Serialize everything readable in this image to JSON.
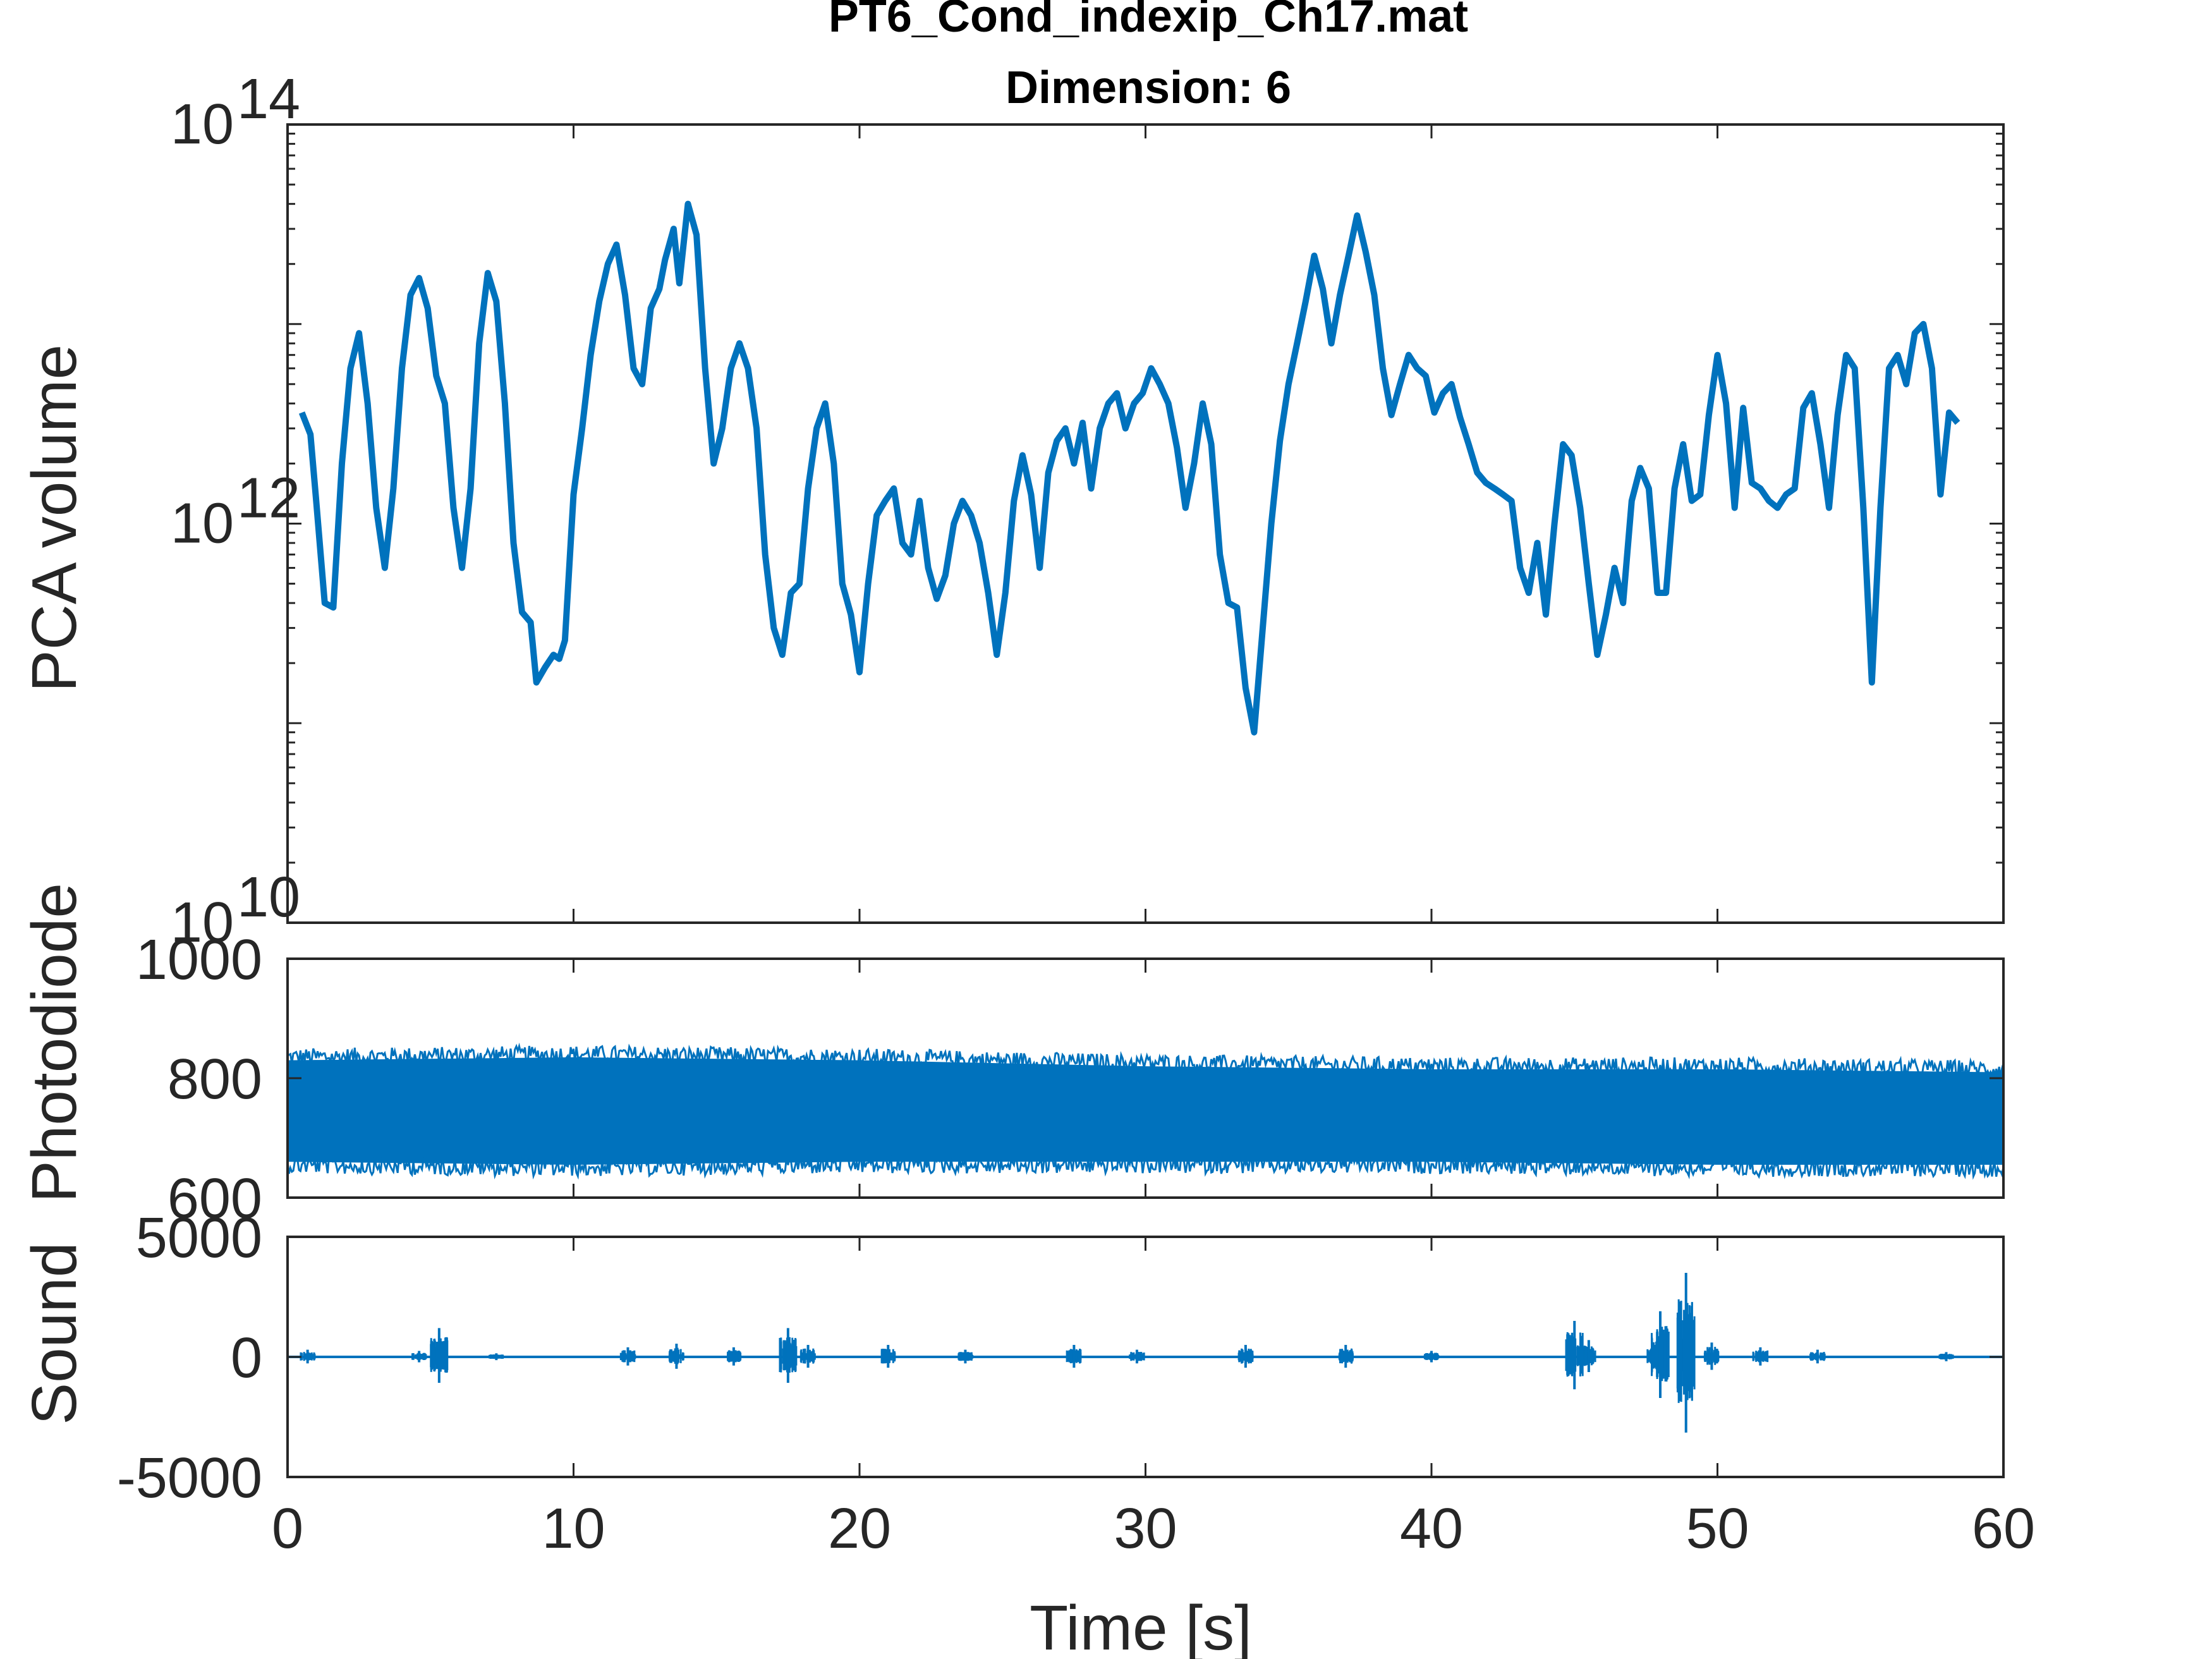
{
  "figure": {
    "title_line1": "PT6_Cond_indexip_Ch17.mat",
    "title_line2": "Dimension: 6"
  },
  "colors": {
    "line": "#0072BD",
    "axis": "#262626"
  },
  "chart_data": [
    {
      "id": "pca",
      "type": "line",
      "ylabel": "PCA volume",
      "yscale": "log",
      "xlim": [
        0,
        60
      ],
      "ylim": [
        10000000000.0,
        100000000000000.0
      ],
      "xticks": [
        0,
        10,
        20,
        30,
        40,
        50,
        60
      ],
      "yticks": [
        {
          "value": 10000000000.0,
          "base": "10",
          "exp": "10"
        },
        {
          "value": 1000000000000.0,
          "base": "10",
          "exp": "12"
        },
        {
          "value": 100000000000000.0,
          "base": "10",
          "exp": "14"
        }
      ],
      "series": [
        {
          "points": [
            [
              0.5,
              3600000000000.0
            ],
            [
              0.8,
              2800000000000.0
            ],
            [
              1.0,
              1300000000000.0
            ],
            [
              1.3,
              400000000000.0
            ],
            [
              1.6,
              380000000000.0
            ],
            [
              1.9,
              2000000000000.0
            ],
            [
              2.2,
              6000000000000.0
            ],
            [
              2.5,
              9000000000000.0
            ],
            [
              2.8,
              4000000000000.0
            ],
            [
              3.1,
              1200000000000.0
            ],
            [
              3.4,
              600000000000.0
            ],
            [
              3.7,
              1500000000000.0
            ],
            [
              4.0,
              6000000000000.0
            ],
            [
              4.3,
              14000000000000.0
            ],
            [
              4.6,
              17000000000000.0
            ],
            [
              4.9,
              12000000000000.0
            ],
            [
              5.2,
              5500000000000.0
            ],
            [
              5.5,
              4000000000000.0
            ],
            [
              5.8,
              1200000000000.0
            ],
            [
              6.1,
              600000000000.0
            ],
            [
              6.4,
              1500000000000.0
            ],
            [
              6.7,
              8000000000000.0
            ],
            [
              7.0,
              18000000000000.0
            ],
            [
              7.3,
              13000000000000.0
            ],
            [
              7.6,
              4000000000000.0
            ],
            [
              7.9,
              800000000000.0
            ],
            [
              8.2,
              360000000000.0
            ],
            [
              8.5,
              320000000000.0
            ],
            [
              8.7,
              160000000000.0
            ],
            [
              9.0,
              190000000000.0
            ],
            [
              9.3,
              220000000000.0
            ],
            [
              9.5,
              210000000000.0
            ],
            [
              9.7,
              260000000000.0
            ],
            [
              10.0,
              1400000000000.0
            ],
            [
              10.3,
              3000000000000.0
            ],
            [
              10.6,
              7000000000000.0
            ],
            [
              10.9,
              13000000000000.0
            ],
            [
              11.2,
              20000000000000.0
            ],
            [
              11.5,
              25000000000000.0
            ],
            [
              11.8,
              14000000000000.0
            ],
            [
              12.1,
              6000000000000.0
            ],
            [
              12.4,
              5000000000000.0
            ],
            [
              12.7,
              12000000000000.0
            ],
            [
              13.0,
              15000000000000.0
            ],
            [
              13.2,
              21000000000000.0
            ],
            [
              13.5,
              30000000000000.0
            ],
            [
              13.7,
              16000000000000.0
            ],
            [
              14.0,
              40000000000000.0
            ],
            [
              14.3,
              28000000000000.0
            ],
            [
              14.6,
              6000000000000.0
            ],
            [
              14.9,
              2000000000000.0
            ],
            [
              15.2,
              3000000000000.0
            ],
            [
              15.5,
              6000000000000.0
            ],
            [
              15.8,
              8000000000000.0
            ],
            [
              16.1,
              6000000000000.0
            ],
            [
              16.4,
              3000000000000.0
            ],
            [
              16.7,
              700000000000.0
            ],
            [
              17.0,
              300000000000.0
            ],
            [
              17.3,
              220000000000.0
            ],
            [
              17.6,
              450000000000.0
            ],
            [
              17.9,
              500000000000.0
            ],
            [
              18.2,
              1500000000000.0
            ],
            [
              18.5,
              3000000000000.0
            ],
            [
              18.8,
              4000000000000.0
            ],
            [
              19.1,
              2000000000000.0
            ],
            [
              19.4,
              500000000000.0
            ],
            [
              19.7,
              350000000000.0
            ],
            [
              20.0,
              180000000000.0
            ],
            [
              20.3,
              500000000000.0
            ],
            [
              20.6,
              1100000000000.0
            ],
            [
              20.9,
              1300000000000.0
            ],
            [
              21.2,
              1500000000000.0
            ],
            [
              21.5,
              800000000000.0
            ],
            [
              21.8,
              700000000000.0
            ],
            [
              22.1,
              1300000000000.0
            ],
            [
              22.4,
              600000000000.0
            ],
            [
              22.7,
              420000000000.0
            ],
            [
              23.0,
              550000000000.0
            ],
            [
              23.3,
              1000000000000.0
            ],
            [
              23.6,
              1300000000000.0
            ],
            [
              23.9,
              1100000000000.0
            ],
            [
              24.2,
              800000000000.0
            ],
            [
              24.5,
              450000000000.0
            ],
            [
              24.8,
              220000000000.0
            ],
            [
              25.1,
              450000000000.0
            ],
            [
              25.4,
              1300000000000.0
            ],
            [
              25.7,
              2200000000000.0
            ],
            [
              26.0,
              1400000000000.0
            ],
            [
              26.3,
              600000000000.0
            ],
            [
              26.6,
              1800000000000.0
            ],
            [
              26.9,
              2600000000000.0
            ],
            [
              27.2,
              3000000000000.0
            ],
            [
              27.5,
              2000000000000.0
            ],
            [
              27.8,
              3200000000000.0
            ],
            [
              28.1,
              1500000000000.0
            ],
            [
              28.4,
              3000000000000.0
            ],
            [
              28.7,
              4000000000000.0
            ],
            [
              29.0,
              4500000000000.0
            ],
            [
              29.3,
              3000000000000.0
            ],
            [
              29.6,
              4000000000000.0
            ],
            [
              29.9,
              4500000000000.0
            ],
            [
              30.2,
              6000000000000.0
            ],
            [
              30.5,
              5000000000000.0
            ],
            [
              30.8,
              4000000000000.0
            ],
            [
              31.1,
              2400000000000.0
            ],
            [
              31.4,
              1200000000000.0
            ],
            [
              31.7,
              2000000000000.0
            ],
            [
              32.0,
              4000000000000.0
            ],
            [
              32.3,
              2500000000000.0
            ],
            [
              32.6,
              700000000000.0
            ],
            [
              32.9,
              400000000000.0
            ],
            [
              33.2,
              380000000000.0
            ],
            [
              33.5,
              150000000000.0
            ],
            [
              33.8,
              90000000000.0
            ],
            [
              34.1,
              300000000000.0
            ],
            [
              34.4,
              1000000000000.0
            ],
            [
              34.7,
              2600000000000.0
            ],
            [
              35.0,
              5000000000000.0
            ],
            [
              35.3,
              8000000000000.0
            ],
            [
              35.6,
              13000000000000.0
            ],
            [
              35.9,
              22000000000000.0
            ],
            [
              36.2,
              15000000000000.0
            ],
            [
              36.5,
              8000000000000.0
            ],
            [
              36.8,
              14000000000000.0
            ],
            [
              37.1,
              22000000000000.0
            ],
            [
              37.4,
              35000000000000.0
            ],
            [
              37.7,
              23000000000000.0
            ],
            [
              38.0,
              14000000000000.0
            ],
            [
              38.3,
              6000000000000.0
            ],
            [
              38.6,
              3500000000000.0
            ],
            [
              38.9,
              5000000000000.0
            ],
            [
              39.2,
              7000000000000.0
            ],
            [
              39.5,
              6000000000000.0
            ],
            [
              39.8,
              5500000000000.0
            ],
            [
              40.1,
              3600000000000.0
            ],
            [
              40.4,
              4500000000000.0
            ],
            [
              40.7,
              5000000000000.0
            ],
            [
              41.0,
              3400000000000.0
            ],
            [
              41.3,
              2500000000000.0
            ],
            [
              41.6,
              1800000000000.0
            ],
            [
              41.9,
              1600000000000.0
            ],
            [
              42.2,
              1500000000000.0
            ],
            [
              42.5,
              1400000000000.0
            ],
            [
              42.8,
              1300000000000.0
            ],
            [
              43.1,
              600000000000.0
            ],
            [
              43.4,
              450000000000.0
            ],
            [
              43.7,
              800000000000.0
            ],
            [
              44.0,
              350000000000.0
            ],
            [
              44.3,
              1000000000000.0
            ],
            [
              44.6,
              2500000000000.0
            ],
            [
              44.9,
              2200000000000.0
            ],
            [
              45.2,
              1200000000000.0
            ],
            [
              45.5,
              500000000000.0
            ],
            [
              45.8,
              220000000000.0
            ],
            [
              46.1,
              350000000000.0
            ],
            [
              46.4,
              600000000000.0
            ],
            [
              46.7,
              400000000000.0
            ],
            [
              47.0,
              1300000000000.0
            ],
            [
              47.3,
              1900000000000.0
            ],
            [
              47.6,
              1500000000000.0
            ],
            [
              47.9,
              450000000000.0
            ],
            [
              48.2,
              450000000000.0
            ],
            [
              48.5,
              1500000000000.0
            ],
            [
              48.8,
              2500000000000.0
            ],
            [
              49.1,
              1300000000000.0
            ],
            [
              49.4,
              1400000000000.0
            ],
            [
              49.7,
              3500000000000.0
            ],
            [
              50.0,
              7000000000000.0
            ],
            [
              50.3,
              4000000000000.0
            ],
            [
              50.6,
              1200000000000.0
            ],
            [
              50.9,
              3800000000000.0
            ],
            [
              51.2,
              1600000000000.0
            ],
            [
              51.5,
              1500000000000.0
            ],
            [
              51.8,
              1300000000000.0
            ],
            [
              52.1,
              1200000000000.0
            ],
            [
              52.4,
              1400000000000.0
            ],
            [
              52.7,
              1500000000000.0
            ],
            [
              53.0,
              3800000000000.0
            ],
            [
              53.3,
              4500000000000.0
            ],
            [
              53.6,
              2500000000000.0
            ],
            [
              53.9,
              1200000000000.0
            ],
            [
              54.2,
              3500000000000.0
            ],
            [
              54.5,
              7000000000000.0
            ],
            [
              54.8,
              6000000000000.0
            ],
            [
              55.1,
              1200000000000.0
            ],
            [
              55.4,
              160000000000.0
            ],
            [
              55.7,
              1200000000000.0
            ],
            [
              56.0,
              6000000000000.0
            ],
            [
              56.3,
              7000000000000.0
            ],
            [
              56.6,
              5000000000000.0
            ],
            [
              56.9,
              9000000000000.0
            ],
            [
              57.2,
              10000000000000.0
            ],
            [
              57.5,
              6000000000000.0
            ],
            [
              57.8,
              1400000000000.0
            ],
            [
              58.1,
              3600000000000.0
            ],
            [
              58.4,
              3200000000000.0
            ]
          ]
        }
      ]
    },
    {
      "id": "photodiode",
      "type": "line",
      "ylabel": "Photodiode",
      "xlim": [
        0,
        60
      ],
      "ylim": [
        600,
        1000
      ],
      "xticks": [
        0,
        10,
        20,
        30,
        40,
        50,
        60
      ],
      "yticks": [
        600,
        800,
        1000
      ],
      "signal": {
        "envelope": [
          {
            "x": 0,
            "min": 660,
            "max": 830
          },
          {
            "x": 10,
            "min": 655,
            "max": 835
          },
          {
            "x": 20,
            "min": 660,
            "max": 830
          },
          {
            "x": 30,
            "min": 660,
            "max": 820
          },
          {
            "x": 40,
            "min": 660,
            "max": 815
          },
          {
            "x": 50,
            "min": 655,
            "max": 815
          },
          {
            "x": 60,
            "min": 655,
            "max": 810
          }
        ]
      }
    },
    {
      "id": "sound",
      "type": "line",
      "ylabel": "Sound",
      "xlim": [
        0,
        60
      ],
      "ylim": [
        -5000,
        5000
      ],
      "xticks": [
        0,
        10,
        20,
        30,
        40,
        50,
        60
      ],
      "yticks": [
        -5000,
        0,
        5000
      ],
      "xlabel": "Time [s]",
      "signal": {
        "bursts": [
          {
            "x": 0.7,
            "amp": 300
          },
          {
            "x": 4.6,
            "amp": 250
          },
          {
            "x": 5.3,
            "amp": 1200
          },
          {
            "x": 7.3,
            "amp": 150
          },
          {
            "x": 11.9,
            "amp": 400
          },
          {
            "x": 13.6,
            "amp": 550
          },
          {
            "x": 15.6,
            "amp": 400
          },
          {
            "x": 17.5,
            "amp": 1200
          },
          {
            "x": 18.2,
            "amp": 500
          },
          {
            "x": 21.0,
            "amp": 500
          },
          {
            "x": 23.7,
            "amp": 300
          },
          {
            "x": 27.5,
            "amp": 500
          },
          {
            "x": 29.7,
            "amp": 300
          },
          {
            "x": 33.5,
            "amp": 500
          },
          {
            "x": 37.0,
            "amp": 500
          },
          {
            "x": 40.0,
            "amp": 250
          },
          {
            "x": 45.0,
            "amp": 1500
          },
          {
            "x": 45.5,
            "amp": 700
          },
          {
            "x": 47.8,
            "amp": 500
          },
          {
            "x": 48.0,
            "amp": 1900
          },
          {
            "x": 48.9,
            "amp": 3500
          },
          {
            "x": 49.8,
            "amp": 600
          },
          {
            "x": 51.5,
            "amp": 400
          },
          {
            "x": 53.5,
            "amp": 300
          },
          {
            "x": 58.0,
            "amp": 200
          }
        ]
      }
    }
  ]
}
